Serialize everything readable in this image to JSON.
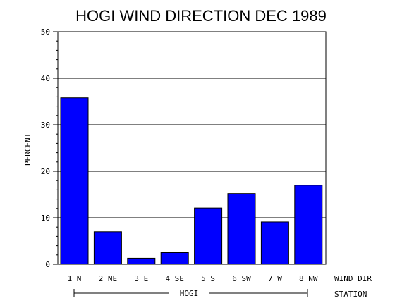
{
  "chart_data": {
    "type": "bar",
    "title": "HOGI WIND DIRECTION DEC 1989",
    "ylabel": "PERCENT",
    "x_axis_name": "WIND_DIR",
    "group_axis_name": "STATION",
    "group_label": "HOGI",
    "ylim": [
      0,
      50
    ],
    "yticks": [
      "0",
      "10",
      "20",
      "30",
      "40",
      "50"
    ],
    "grid": true,
    "categories": [
      "1 N",
      "2 NE",
      "3 E",
      "4 SE",
      "5 S",
      "6 SW",
      "7 W",
      "8 NW"
    ],
    "values": [
      35.8,
      7.0,
      1.3,
      2.5,
      12.1,
      15.2,
      9.1,
      17.0
    ],
    "bar_color": "#0000ff"
  }
}
